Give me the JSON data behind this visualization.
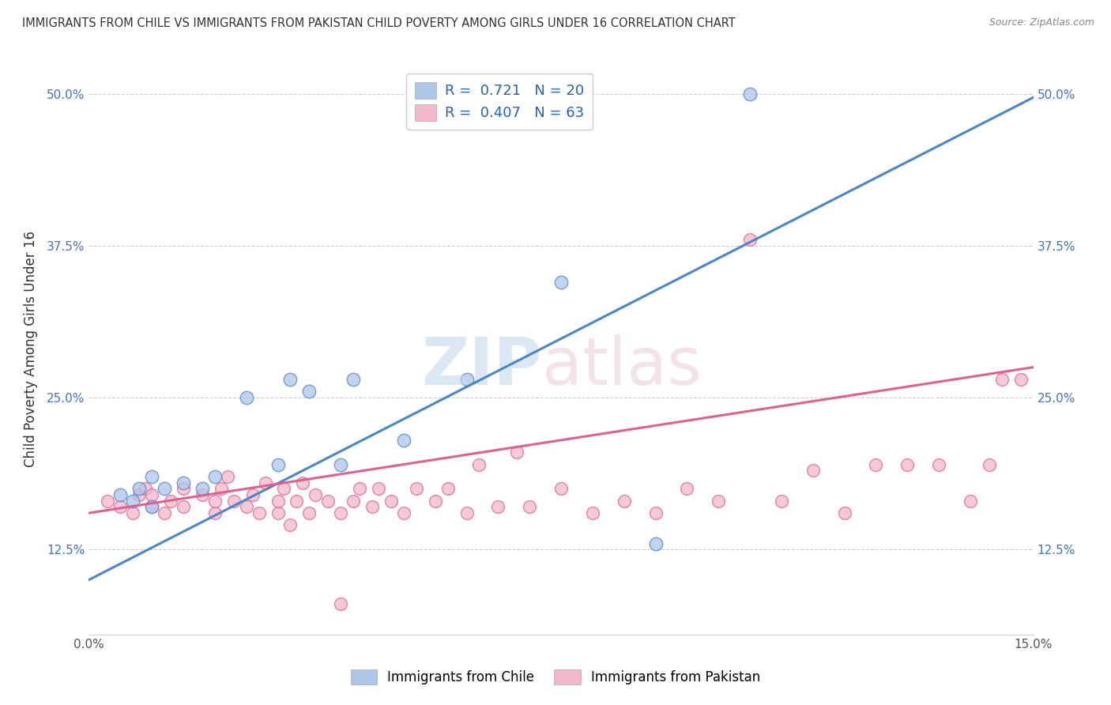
{
  "title": "IMMIGRANTS FROM CHILE VS IMMIGRANTS FROM PAKISTAN CHILD POVERTY AMONG GIRLS UNDER 16 CORRELATION CHART",
  "source": "Source: ZipAtlas.com",
  "ylabel": "Child Poverty Among Girls Under 16",
  "yticks": [
    "12.5%",
    "25.0%",
    "37.5%",
    "50.0%"
  ],
  "ytick_vals": [
    0.125,
    0.25,
    0.375,
    0.5
  ],
  "xlim": [
    0.0,
    0.15
  ],
  "ylim": [
    0.055,
    0.525
  ],
  "chile_R": 0.721,
  "chile_N": 20,
  "pakistan_R": 0.407,
  "pakistan_N": 63,
  "chile_color": "#aec6e8",
  "pakistan_color": "#f4b8cc",
  "chile_line_color": "#4a86c8",
  "pakistan_line_color": "#e06090",
  "legend_label_chile": "Immigrants from Chile",
  "legend_label_pakistan": "Immigrants from Pakistan",
  "chile_line_x0": 0.0,
  "chile_line_y0": 0.1,
  "chile_line_x1": 0.15,
  "chile_line_y1": 0.497,
  "pak_line_x0": 0.0,
  "pak_line_y0": 0.155,
  "pak_line_x1": 0.15,
  "pak_line_y1": 0.275,
  "chile_scatter_x": [
    0.005,
    0.007,
    0.008,
    0.01,
    0.01,
    0.012,
    0.015,
    0.018,
    0.02,
    0.025,
    0.03,
    0.032,
    0.035,
    0.04,
    0.042,
    0.05,
    0.06,
    0.075,
    0.09,
    0.105
  ],
  "chile_scatter_y": [
    0.17,
    0.165,
    0.175,
    0.16,
    0.185,
    0.175,
    0.18,
    0.175,
    0.185,
    0.25,
    0.195,
    0.265,
    0.255,
    0.195,
    0.265,
    0.215,
    0.265,
    0.345,
    0.13,
    0.5
  ],
  "pakistan_scatter_x": [
    0.003,
    0.005,
    0.007,
    0.008,
    0.009,
    0.01,
    0.01,
    0.012,
    0.013,
    0.015,
    0.015,
    0.018,
    0.02,
    0.02,
    0.021,
    0.022,
    0.023,
    0.025,
    0.026,
    0.027,
    0.028,
    0.03,
    0.03,
    0.031,
    0.032,
    0.033,
    0.034,
    0.035,
    0.036,
    0.038,
    0.04,
    0.04,
    0.042,
    0.043,
    0.045,
    0.046,
    0.048,
    0.05,
    0.052,
    0.055,
    0.057,
    0.06,
    0.062,
    0.065,
    0.068,
    0.07,
    0.075,
    0.08,
    0.085,
    0.09,
    0.095,
    0.1,
    0.105,
    0.11,
    0.115,
    0.12,
    0.125,
    0.13,
    0.135,
    0.14,
    0.143,
    0.145,
    0.148
  ],
  "pakistan_scatter_y": [
    0.165,
    0.16,
    0.155,
    0.17,
    0.175,
    0.16,
    0.17,
    0.155,
    0.165,
    0.16,
    0.175,
    0.17,
    0.155,
    0.165,
    0.175,
    0.185,
    0.165,
    0.16,
    0.17,
    0.155,
    0.18,
    0.155,
    0.165,
    0.175,
    0.145,
    0.165,
    0.18,
    0.155,
    0.17,
    0.165,
    0.08,
    0.155,
    0.165,
    0.175,
    0.16,
    0.175,
    0.165,
    0.155,
    0.175,
    0.165,
    0.175,
    0.155,
    0.195,
    0.16,
    0.205,
    0.16,
    0.175,
    0.155,
    0.165,
    0.155,
    0.175,
    0.165,
    0.38,
    0.165,
    0.19,
    0.155,
    0.195,
    0.195,
    0.195,
    0.165,
    0.195,
    0.265,
    0.265
  ]
}
